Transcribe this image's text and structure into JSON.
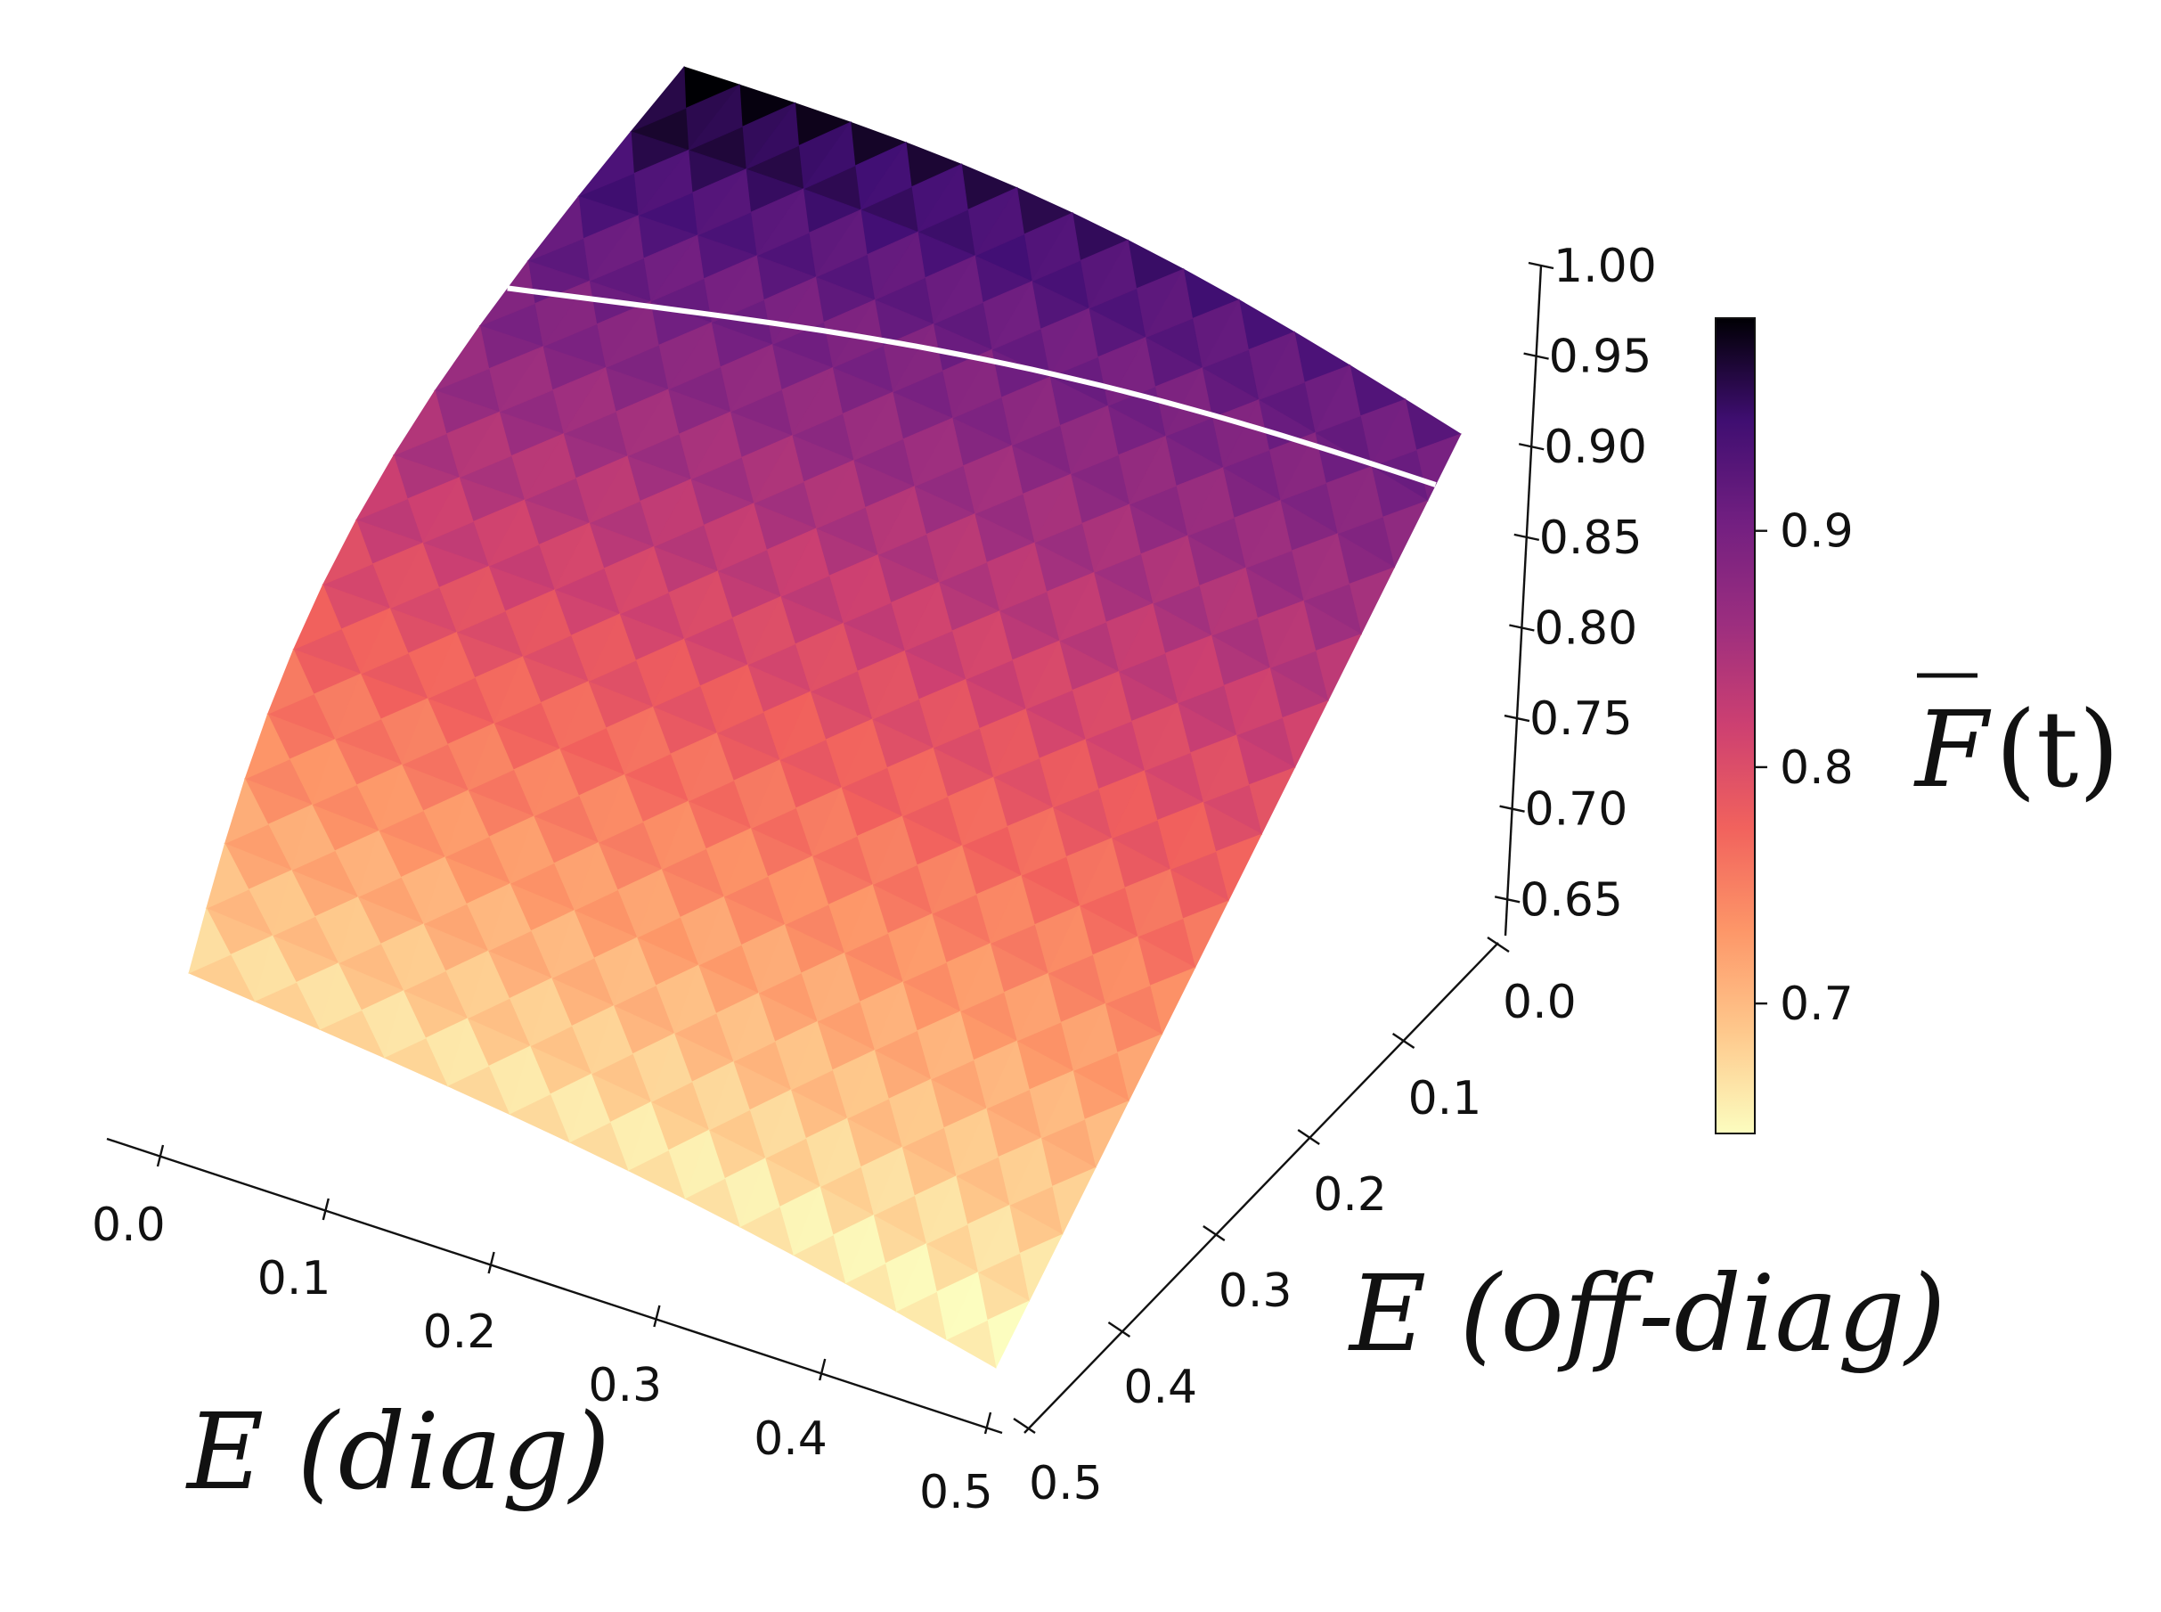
{
  "chart_data": {
    "type": "surface3d",
    "title": "",
    "colormap": "magma_r",
    "x_axis": {
      "label": "E (diag)",
      "ticks": [
        "0.0",
        "0.1",
        "0.2",
        "0.3",
        "0.4",
        "0.5"
      ],
      "range": [
        0.0,
        0.5
      ]
    },
    "y_axis": {
      "label": "E (off-diag)",
      "ticks": [
        "0.0",
        "0.1",
        "0.2",
        "0.3",
        "0.4",
        "0.5"
      ],
      "range": [
        0.0,
        0.5
      ]
    },
    "z_axis": {
      "ticks": [
        "0.65",
        "0.70",
        "0.75",
        "0.80",
        "0.85",
        "0.90",
        "0.95",
        "1.00"
      ],
      "range": [
        0.63,
        1.0
      ]
    },
    "colorbar": {
      "label_main": "F",
      "label_suffix": "(t)",
      "ticks": [
        "0.7",
        "0.8",
        "0.9"
      ],
      "tick_values": [
        0.7,
        0.8,
        0.9
      ],
      "range": [
        0.645,
        0.99
      ]
    },
    "contour_level": 0.9,
    "surface_corners": {
      "diag0_offdiag0": 0.99,
      "diag0_offdiag05": 0.92,
      "diag05_offdiag0": 0.67,
      "diag05_offdiag05": 0.645
    },
    "grid": false
  }
}
